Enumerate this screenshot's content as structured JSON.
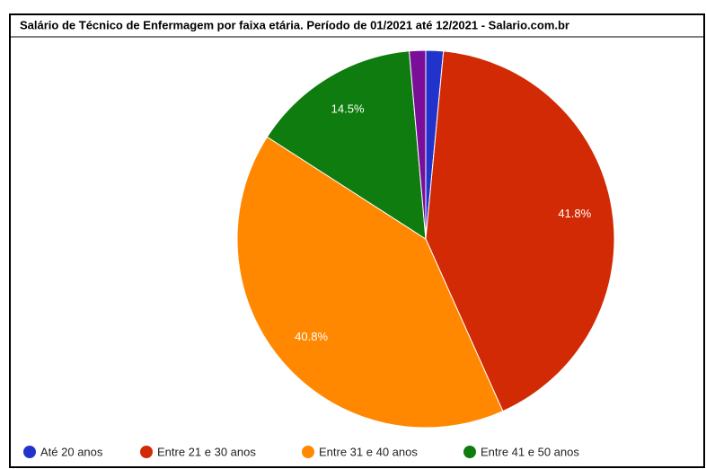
{
  "chart_data": {
    "type": "pie",
    "title": "Salário de Técnico de Enfermagem por faixa etária. Período de 01/2021 até 12/2021 - Salario.com.br",
    "categories": [
      "Até 20 anos",
      "Entre 21 e 30 anos",
      "Entre 31 e 40 anos",
      "Entre 41 e 50 anos",
      null
    ],
    "values": [
      1.5,
      41.8,
      40.8,
      14.5,
      1.4
    ],
    "value_labels": [
      null,
      "41.8%",
      "40.8%",
      "14.5%",
      null
    ],
    "colors": [
      "#2233cc",
      "#d22a04",
      "#ff8800",
      "#0e7c0e",
      "#7b0e99"
    ],
    "legend": "bottom"
  }
}
